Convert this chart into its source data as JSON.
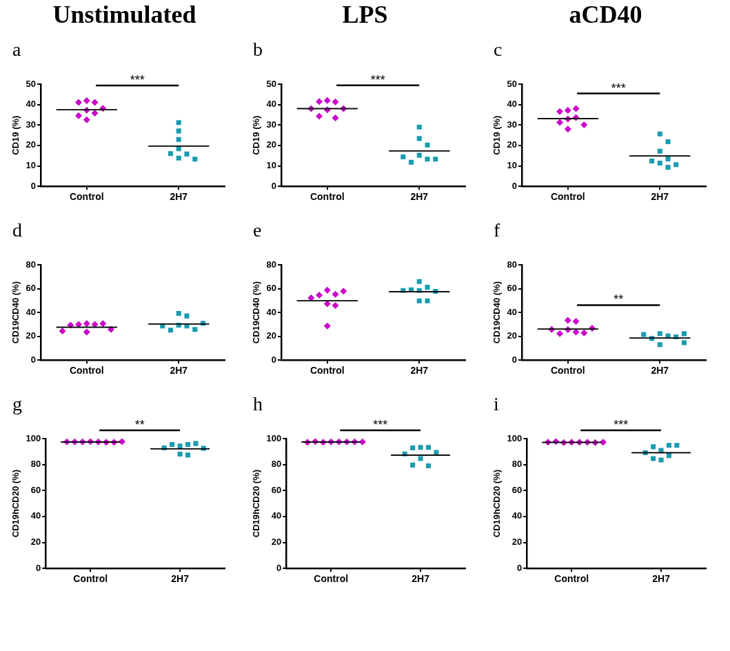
{
  "chart_data": [
    {
      "type": "scatter",
      "title": "Unstimulated",
      "subtitle": "a",
      "ylabel": "CD19 (%)",
      "categories": [
        "Control",
        "2H7"
      ],
      "ylim": [
        0,
        50
      ],
      "yticks": [
        0,
        10,
        20,
        30,
        40,
        50
      ],
      "annotations": [
        "***"
      ],
      "series": [
        {
          "color": "#cc00cc",
          "marker": "diamond",
          "x": [
            "Control",
            "Control",
            "Control",
            "Control",
            "Control",
            "Control",
            "Control",
            "Control"
          ],
          "values": [
            41.9,
            41.1,
            41.1,
            38.1,
            37.3,
            35.8,
            34.6,
            32.5
          ]
        },
        {
          "color": "#1a9bb0",
          "marker": "square",
          "x": [
            "2H7",
            "2H7",
            "2H7",
            "2H7",
            "2H7",
            "2H7",
            "2H7",
            "2H7"
          ],
          "values": [
            31.2,
            27.1,
            22.9,
            18.4,
            15.8,
            16.0,
            13.8,
            13.3
          ]
        },
        {
          "type": "box",
          "color": "#000000",
          "boxes": [
            {
              "low": 37.4,
              "q1": 37.4,
              "median": 37.4,
              "q3": 37.4,
              "high": 37.4
            },
            {
              "low": 19.7,
              "q1": 19.7,
              "median": 19.7,
              "q3": 19.7,
              "high": 19.7
            }
          ]
        }
      ]
    },
    {
      "type": "scatter",
      "title": "LPS",
      "subtitle": "b",
      "ylabel": "CD19 (%)",
      "categories": [
        "Control",
        "2H7"
      ],
      "ylim": [
        0,
        50
      ],
      "yticks": [
        0,
        10,
        20,
        30,
        40,
        50
      ],
      "annotations": [
        "***"
      ],
      "series": [
        {
          "color": "#cc00cc",
          "marker": "diamond",
          "x": [
            "Control",
            "Control",
            "Control",
            "Control",
            "Control",
            "Control",
            "Control",
            "Control"
          ],
          "values": [
            42.0,
            41.3,
            41.5,
            38.0,
            37.4,
            38.0,
            33.5,
            34.3
          ]
        },
        {
          "color": "#1a9bb0",
          "marker": "square",
          "x": [
            "2H7",
            "2H7",
            "2H7",
            "2H7",
            "2H7",
            "2H7",
            "2H7",
            "2H7"
          ],
          "values": [
            29.0,
            23.4,
            20.2,
            15.2,
            13.3,
            11.8,
            13.3,
            14.4
          ]
        },
        {
          "type": "box",
          "color": "#000000",
          "boxes": [
            {
              "low": 38.0,
              "q1": 38.0,
              "median": 38.0,
              "q3": 38.0,
              "high": 38.0
            },
            {
              "low": 17.4,
              "q1": 17.4,
              "median": 17.4,
              "q3": 17.4,
              "high": 17.4
            }
          ]
        }
      ]
    },
    {
      "type": "scatter",
      "title": "aCD40",
      "subtitle": "c",
      "ylabel": "CD19 (%)",
      "categories": [
        "Control",
        "2H7"
      ],
      "ylim": [
        0,
        50
      ],
      "yticks": [
        0,
        10,
        20,
        30,
        40,
        50
      ],
      "annotations": [
        "***"
      ],
      "series": [
        {
          "color": "#cc00cc",
          "marker": "diamond",
          "x": [
            "Control",
            "Control",
            "Control",
            "Control",
            "Control",
            "Control",
            "Control",
            "Control"
          ],
          "values": [
            37.2,
            38.0,
            36.6,
            33.6,
            33.0,
            31.3,
            30.1,
            28.0
          ]
        },
        {
          "color": "#1a9bb0",
          "marker": "square",
          "x": [
            "2H7",
            "2H7",
            "2H7",
            "2H7",
            "2H7",
            "2H7",
            "2H7",
            "2H7"
          ],
          "values": [
            25.6,
            21.8,
            17.2,
            13.4,
            11.4,
            12.4,
            10.6,
            9.3
          ]
        },
        {
          "type": "box",
          "color": "#000000",
          "boxes": [
            {
              "low": 33.1,
              "q1": 33.1,
              "median": 33.1,
              "q3": 33.1,
              "high": 33.1
            },
            {
              "low": 14.8,
              "q1": 14.8,
              "median": 14.8,
              "q3": 14.8,
              "high": 14.8
            }
          ]
        }
      ]
    },
    {
      "type": "scatter",
      "subtitle": "d",
      "ylabel": "CD19CD40 (%)",
      "categories": [
        "Control",
        "2H7"
      ],
      "ylim": [
        0,
        80
      ],
      "yticks": [
        0,
        20,
        40,
        60,
        80
      ],
      "series": [
        {
          "color": "#cc00cc",
          "marker": "diamond",
          "x": [
            "Control",
            "Control",
            "Control",
            "Control",
            "Control",
            "Control",
            "Control",
            "Control"
          ],
          "values": [
            30.7,
            29.9,
            29.9,
            30.7,
            29.4,
            25.7,
            23.5,
            24.5
          ]
        },
        {
          "color": "#1a9bb0",
          "marker": "square",
          "x": [
            "2H7",
            "2H7",
            "2H7",
            "2H7",
            "2H7",
            "2H7",
            "2H7",
            "2H7"
          ],
          "values": [
            39.2,
            37.1,
            29.4,
            28.6,
            25.2,
            25.7,
            28.6,
            30.9
          ]
        },
        {
          "type": "box",
          "color": "#000000",
          "boxes": [
            {
              "low": 27.6,
              "q1": 27.6,
              "median": 27.6,
              "q3": 27.6,
              "high": 27.6
            },
            {
              "low": 30.4,
              "q1": 30.4,
              "median": 30.4,
              "q3": 30.4,
              "high": 30.4
            }
          ]
        }
      ]
    },
    {
      "type": "scatter",
      "subtitle": "e",
      "ylabel": "CD19CD40 (%)",
      "categories": [
        "Control",
        "2H7"
      ],
      "ylim": [
        0,
        80
      ],
      "yticks": [
        0,
        20,
        40,
        60,
        80
      ],
      "series": [
        {
          "color": "#cc00cc",
          "marker": "diamond",
          "x": [
            "Control",
            "Control",
            "Control",
            "Control",
            "Control",
            "Control",
            "Control",
            "Control"
          ],
          "values": [
            58.7,
            55.3,
            54.6,
            57.9,
            52.2,
            47.3,
            45.9,
            28.6
          ]
        },
        {
          "color": "#1a9bb0",
          "marker": "square",
          "x": [
            "2H7",
            "2H7",
            "2H7",
            "2H7",
            "2H7",
            "2H7",
            "2H7",
            "2H7"
          ],
          "values": [
            66.0,
            61.1,
            59.0,
            58.4,
            57.7,
            58.4,
            49.8,
            49.8
          ]
        },
        {
          "type": "box",
          "color": "#000000",
          "boxes": [
            {
              "low": 49.8,
              "q1": 49.8,
              "median": 49.8,
              "q3": 49.8,
              "high": 49.8
            },
            {
              "low": 57.4,
              "q1": 57.4,
              "median": 57.4,
              "q3": 57.4,
              "high": 57.4
            }
          ]
        }
      ]
    },
    {
      "type": "scatter",
      "subtitle": "f",
      "ylabel": "CD19CD40 (%)",
      "categories": [
        "Control",
        "2H7"
      ],
      "ylim": [
        0,
        80
      ],
      "yticks": [
        0,
        20,
        40,
        60,
        80
      ],
      "annotations": [
        "**"
      ],
      "series": [
        {
          "color": "#cc00cc",
          "marker": "diamond",
          "x": [
            "Control",
            "Control",
            "Control",
            "Control",
            "Control",
            "Control",
            "Control",
            "Control"
          ],
          "values": [
            33.4,
            32.6,
            25.6,
            23.5,
            22.2,
            22.8,
            25.7,
            26.8
          ]
        },
        {
          "color": "#1a9bb0",
          "marker": "square",
          "x": [
            "2H7",
            "2H7",
            "2H7",
            "2H7",
            "2H7",
            "2H7",
            "2H7",
            "2H7"
          ],
          "values": [
            22.3,
            20.4,
            18.2,
            19.5,
            21.5,
            22.2,
            13.0,
            14.6
          ]
        },
        {
          "type": "box",
          "color": "#000000",
          "boxes": [
            {
              "low": 26.0,
              "q1": 26.0,
              "median": 26.0,
              "q3": 26.0,
              "high": 26.0
            },
            {
              "low": 18.5,
              "q1": 18.5,
              "median": 18.5,
              "q3": 18.5,
              "high": 18.5
            }
          ]
        }
      ]
    },
    {
      "type": "scatter",
      "subtitle": "g",
      "ylabel": "CD19hCD20 (%)",
      "categories": [
        "Control",
        "2H7"
      ],
      "ylim": [
        0,
        100
      ],
      "yticks": [
        0,
        20,
        40,
        60,
        80,
        100
      ],
      "annotations": [
        "**"
      ],
      "series": [
        {
          "color": "#cc00cc",
          "marker": "diamond",
          "x": [
            "Control",
            "Control",
            "Control",
            "Control",
            "Control",
            "Control",
            "Control",
            "Control"
          ],
          "values": [
            97.7,
            97.5,
            97.5,
            97.2,
            97.5,
            97.2,
            97.5,
            97.7
          ]
        },
        {
          "color": "#1a9bb0",
          "marker": "square",
          "x": [
            "2H7",
            "2H7",
            "2H7",
            "2H7",
            "2H7",
            "2H7",
            "2H7",
            "2H7"
          ],
          "values": [
            94.3,
            95.5,
            95.5,
            96.2,
            92.8,
            88.0,
            87.3,
            92.5
          ]
        },
        {
          "type": "box",
          "color": "#000000",
          "boxes": [
            {
              "low": 97.4,
              "q1": 97.4,
              "median": 97.4,
              "q3": 97.4,
              "high": 97.4
            },
            {
              "low": 92.1,
              "q1": 92.1,
              "median": 92.1,
              "q3": 92.1,
              "high": 92.1
            }
          ]
        }
      ]
    },
    {
      "type": "scatter",
      "subtitle": "h",
      "ylabel": "CD19hCD20 (%)",
      "categories": [
        "Control",
        "2H7"
      ],
      "ylim": [
        0,
        100
      ],
      "yticks": [
        0,
        20,
        40,
        60,
        80,
        100
      ],
      "annotations": [
        "***"
      ],
      "series": [
        {
          "color": "#cc00cc",
          "marker": "diamond",
          "x": [
            "Control",
            "Control",
            "Control",
            "Control",
            "Control",
            "Control",
            "Control",
            "Control"
          ],
          "values": [
            97.5,
            97.5,
            97.2,
            97.5,
            97.7,
            97.5,
            97.2,
            97.5
          ]
        },
        {
          "color": "#1a9bb0",
          "marker": "square",
          "x": [
            "2H7",
            "2H7",
            "2H7",
            "2H7",
            "2H7",
            "2H7",
            "2H7",
            "2H7"
          ],
          "values": [
            93.2,
            93.2,
            92.8,
            89.4,
            88.2,
            84.6,
            79.0,
            79.6
          ]
        },
        {
          "type": "box",
          "color": "#000000",
          "boxes": [
            {
              "low": 97.4,
              "q1": 97.4,
              "median": 97.4,
              "q3": 97.4,
              "high": 97.4
            },
            {
              "low": 87.3,
              "q1": 87.3,
              "median": 87.3,
              "q3": 87.3,
              "high": 87.3
            }
          ]
        }
      ]
    },
    {
      "type": "scatter",
      "subtitle": "i",
      "ylabel": "CD19hCD20 (%)",
      "categories": [
        "Control",
        "2H7"
      ],
      "ylim": [
        0,
        100
      ],
      "yticks": [
        0,
        20,
        40,
        60,
        80,
        100
      ],
      "annotations": [
        "***"
      ],
      "series": [
        {
          "color": "#cc00cc",
          "marker": "diamond",
          "x": [
            "Control",
            "Control",
            "Control",
            "Control",
            "Control",
            "Control",
            "Control",
            "Control"
          ],
          "values": [
            97.2,
            97.2,
            97.0,
            97.2,
            97.7,
            97.0,
            97.2,
            97.2
          ]
        },
        {
          "color": "#1a9bb0",
          "marker": "square",
          "x": [
            "2H7",
            "2H7",
            "2H7",
            "2H7",
            "2H7",
            "2H7",
            "2H7",
            "2H7"
          ],
          "values": [
            91.0,
            94.8,
            93.7,
            94.8,
            89.1,
            86.9,
            83.5,
            84.6
          ]
        },
        {
          "type": "box",
          "color": "#000000",
          "boxes": [
            {
              "low": 97.1,
              "q1": 97.1,
              "median": 97.1,
              "q3": 97.1,
              "high": 97.1
            },
            {
              "low": 89.1,
              "q1": 89.1,
              "median": 89.1,
              "q3": 89.1,
              "high": 89.1
            }
          ]
        }
      ]
    }
  ]
}
